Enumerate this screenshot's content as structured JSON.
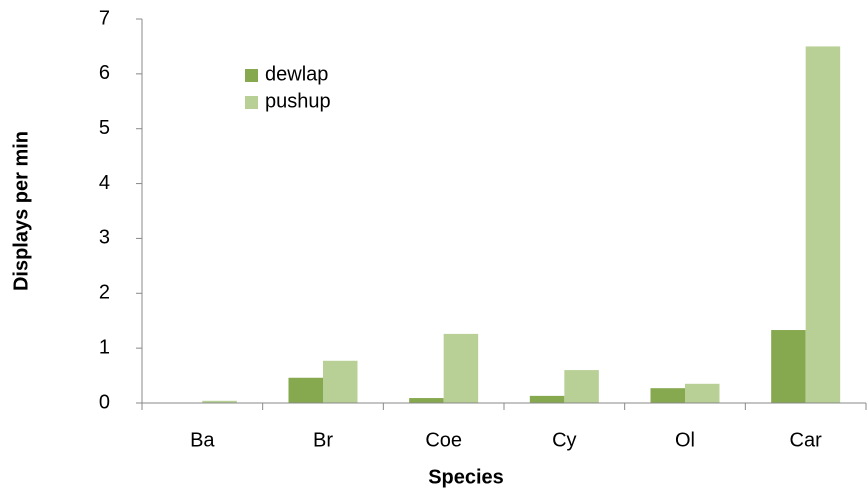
{
  "chart_data": {
    "type": "bar",
    "xlabel": "Species",
    "ylabel": "Displays per min",
    "categories": [
      "Ba",
      "Br",
      "Coe",
      "Cy",
      "Ol",
      "Car"
    ],
    "series": [
      {
        "name": "dewlap",
        "color": "#86a84e",
        "values": [
          0,
          0.46,
          0.09,
          0.13,
          0.27,
          1.33
        ]
      },
      {
        "name": "pushup",
        "color": "#b8d095",
        "values": [
          0.04,
          0.77,
          1.26,
          0.6,
          0.35,
          6.5
        ]
      }
    ],
    "ylim": [
      0,
      7
    ],
    "yticks": [
      0,
      1,
      2,
      3,
      4,
      5,
      6,
      7
    ],
    "grid": false,
    "legend": "upper left"
  }
}
